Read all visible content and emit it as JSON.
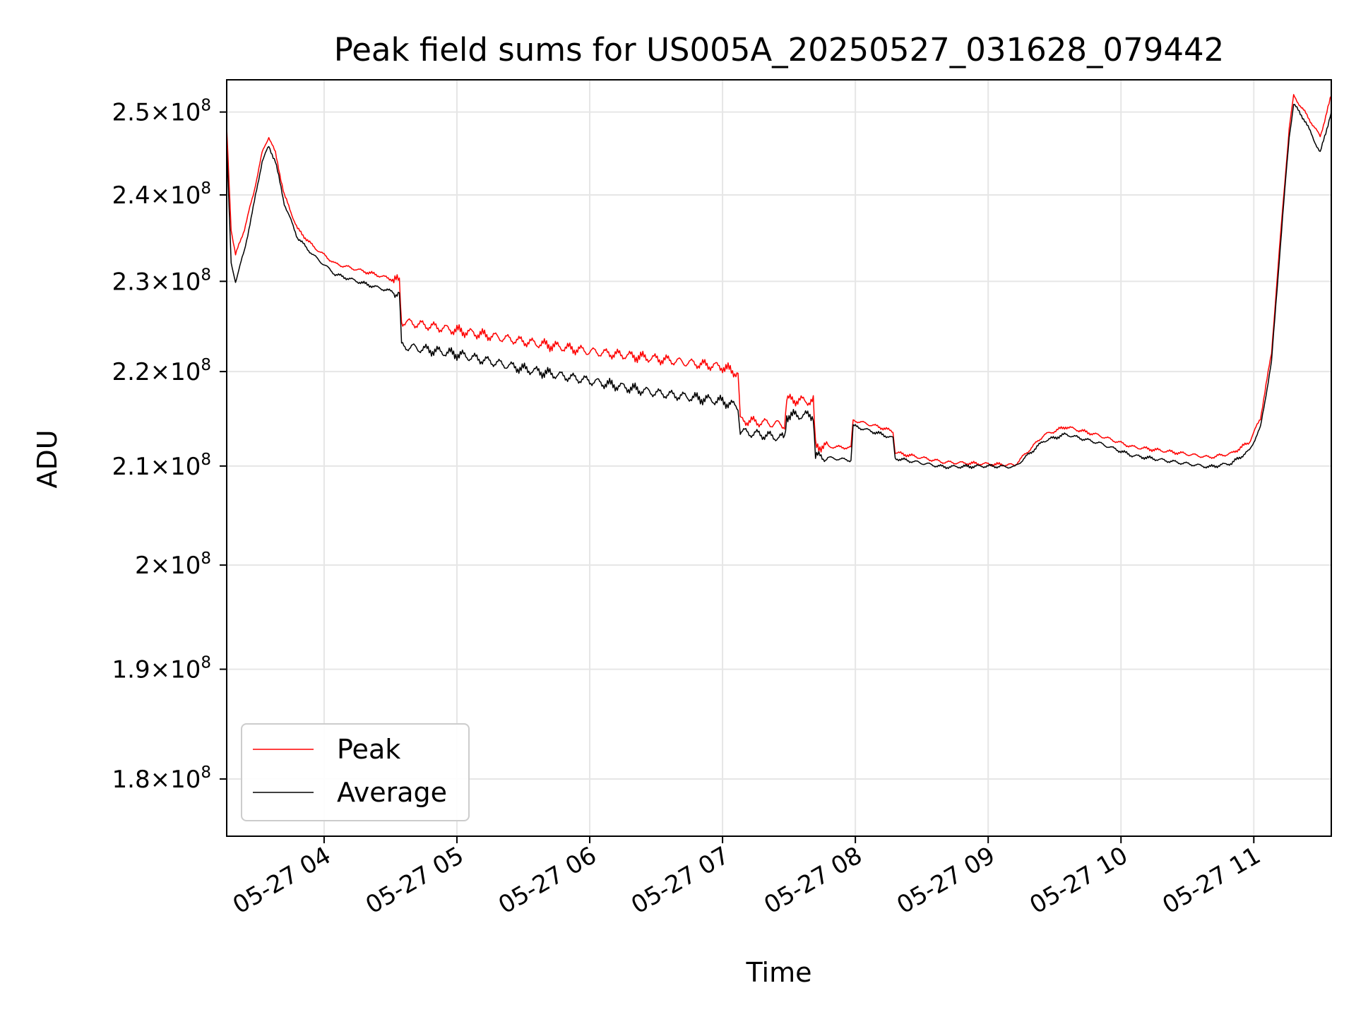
{
  "chart_data": {
    "type": "line",
    "title": "Peak field sums for US005A_20250527_031628_079442",
    "xlabel": "Time",
    "ylabel": "ADU",
    "y_scale": "log",
    "ylim": [
      175000000,
      254000000
    ],
    "xlim": [
      "2025-05-27 03:16",
      "2025-05-27 11:35"
    ],
    "grid": true,
    "legend": {
      "placement": "lower-left"
    },
    "x_ticks": [
      {
        "t": "2025-05-27 04:00",
        "label": "05-27 04"
      },
      {
        "t": "2025-05-27 05:00",
        "label": "05-27 05"
      },
      {
        "t": "2025-05-27 06:00",
        "label": "05-27 06"
      },
      {
        "t": "2025-05-27 07:00",
        "label": "05-27 07"
      },
      {
        "t": "2025-05-27 08:00",
        "label": "05-27 08"
      },
      {
        "t": "2025-05-27 09:00",
        "label": "05-27 09"
      },
      {
        "t": "2025-05-27 10:00",
        "label": "05-27 10"
      },
      {
        "t": "2025-05-27 11:00",
        "label": "05-27 11"
      }
    ],
    "y_ticks": [
      {
        "value": 180000000,
        "mantissa": "1.8",
        "exp": "8"
      },
      {
        "value": 190000000,
        "mantissa": "1.9",
        "exp": "8"
      },
      {
        "value": 200000000,
        "mantissa": "2",
        "exp": "8"
      },
      {
        "value": 210000000,
        "mantissa": "2.1",
        "exp": "8"
      },
      {
        "value": 220000000,
        "mantissa": "2.2",
        "exp": "8"
      },
      {
        "value": 230000000,
        "mantissa": "2.3",
        "exp": "8"
      },
      {
        "value": 240000000,
        "mantissa": "2.4",
        "exp": "8"
      },
      {
        "value": 250000000,
        "mantissa": "2.5",
        "exp": "8"
      }
    ],
    "series": [
      {
        "name": "Peak",
        "color": "#ff0000",
        "points": [
          [
            "2025-05-27 03:16",
            248000000
          ],
          [
            "2025-05-27 03:18",
            236000000
          ],
          [
            "2025-05-27 03:20",
            233000000
          ],
          [
            "2025-05-27 03:24",
            236000000
          ],
          [
            "2025-05-27 03:28",
            240000000
          ],
          [
            "2025-05-27 03:32",
            245000000
          ],
          [
            "2025-05-27 03:35",
            247000000
          ],
          [
            "2025-05-27 03:38",
            245000000
          ],
          [
            "2025-05-27 03:42",
            240000000
          ],
          [
            "2025-05-27 03:48",
            236000000
          ],
          [
            "2025-05-27 03:55",
            234000000
          ],
          [
            "2025-05-27 04:05",
            232000000
          ],
          [
            "2025-05-27 04:20",
            231000000
          ],
          [
            "2025-05-27 04:34",
            230000000
          ],
          [
            "2025-05-27 04:35",
            225500000
          ],
          [
            "2025-05-27 05:00",
            224500000
          ],
          [
            "2025-05-27 05:30",
            223300000
          ],
          [
            "2025-05-27 06:00",
            222200000
          ],
          [
            "2025-05-27 06:30",
            221400000
          ],
          [
            "2025-05-27 07:00",
            220500000
          ],
          [
            "2025-05-27 07:07",
            219800000
          ],
          [
            "2025-05-27 07:08",
            214800000
          ],
          [
            "2025-05-27 07:28",
            214300000
          ],
          [
            "2025-05-27 07:29",
            217000000
          ],
          [
            "2025-05-27 07:41",
            216800000
          ],
          [
            "2025-05-27 07:42",
            212100000
          ],
          [
            "2025-05-27 07:58",
            211900000
          ],
          [
            "2025-05-27 07:59",
            214800000
          ],
          [
            "2025-05-27 08:12",
            214000000
          ],
          [
            "2025-05-27 08:17",
            213600000
          ],
          [
            "2025-05-27 08:18",
            211400000
          ],
          [
            "2025-05-27 08:40",
            210400000
          ],
          [
            "2025-05-27 09:00",
            210200000
          ],
          [
            "2025-05-27 09:12",
            210100000
          ],
          [
            "2025-05-27 09:25",
            213200000
          ],
          [
            "2025-05-27 09:35",
            214100000
          ],
          [
            "2025-05-27 09:50",
            213200000
          ],
          [
            "2025-05-27 10:05",
            212000000
          ],
          [
            "2025-05-27 10:25",
            211400000
          ],
          [
            "2025-05-27 10:40",
            210900000
          ],
          [
            "2025-05-27 10:50",
            211300000
          ],
          [
            "2025-05-27 10:58",
            212500000
          ],
          [
            "2025-05-27 11:03",
            215000000
          ],
          [
            "2025-05-27 11:08",
            222000000
          ],
          [
            "2025-05-27 11:12",
            235000000
          ],
          [
            "2025-05-27 11:16",
            248000000
          ],
          [
            "2025-05-27 11:18",
            252000000
          ],
          [
            "2025-05-27 11:23",
            250000000
          ],
          [
            "2025-05-27 11:30",
            247000000
          ],
          [
            "2025-05-27 11:35",
            252000000
          ]
        ]
      },
      {
        "name": "Average",
        "color": "#000000",
        "points": [
          [
            "2025-05-27 03:16",
            246000000
          ],
          [
            "2025-05-27 03:18",
            232000000
          ],
          [
            "2025-05-27 03:20",
            230000000
          ],
          [
            "2025-05-27 03:24",
            233500000
          ],
          [
            "2025-05-27 03:28",
            238500000
          ],
          [
            "2025-05-27 03:32",
            244000000
          ],
          [
            "2025-05-27 03:35",
            245800000
          ],
          [
            "2025-05-27 03:38",
            244000000
          ],
          [
            "2025-05-27 03:42",
            239000000
          ],
          [
            "2025-05-27 03:48",
            235000000
          ],
          [
            "2025-05-27 03:55",
            233000000
          ],
          [
            "2025-05-27 04:05",
            230800000
          ],
          [
            "2025-05-27 04:20",
            229600000
          ],
          [
            "2025-05-27 04:34",
            228600000
          ],
          [
            "2025-05-27 04:35",
            222800000
          ],
          [
            "2025-05-27 05:00",
            221900000
          ],
          [
            "2025-05-27 05:30",
            220300000
          ],
          [
            "2025-05-27 06:00",
            219000000
          ],
          [
            "2025-05-27 06:30",
            217700000
          ],
          [
            "2025-05-27 07:00",
            216800000
          ],
          [
            "2025-05-27 07:07",
            216200000
          ],
          [
            "2025-05-27 07:08",
            213600000
          ],
          [
            "2025-05-27 07:28",
            212900000
          ],
          [
            "2025-05-27 07:29",
            215300000
          ],
          [
            "2025-05-27 07:41",
            215300000
          ],
          [
            "2025-05-27 07:42",
            211000000
          ],
          [
            "2025-05-27 07:58",
            210600000
          ],
          [
            "2025-05-27 07:59",
            214200000
          ],
          [
            "2025-05-27 08:12",
            213300000
          ],
          [
            "2025-05-27 08:17",
            212900000
          ],
          [
            "2025-05-27 08:18",
            210800000
          ],
          [
            "2025-05-27 08:40",
            209900000
          ],
          [
            "2025-05-27 09:00",
            210000000
          ],
          [
            "2025-05-27 09:12",
            209900000
          ],
          [
            "2025-05-27 09:25",
            212600000
          ],
          [
            "2025-05-27 09:35",
            213300000
          ],
          [
            "2025-05-27 09:50",
            212400000
          ],
          [
            "2025-05-27 10:05",
            211100000
          ],
          [
            "2025-05-27 10:25",
            210400000
          ],
          [
            "2025-05-27 10:40",
            209900000
          ],
          [
            "2025-05-27 10:50",
            210300000
          ],
          [
            "2025-05-27 10:58",
            211600000
          ],
          [
            "2025-05-27 11:03",
            214000000
          ],
          [
            "2025-05-27 11:08",
            221000000
          ],
          [
            "2025-05-27 11:12",
            234000000
          ],
          [
            "2025-05-27 11:16",
            247000000
          ],
          [
            "2025-05-27 11:18",
            251000000
          ],
          [
            "2025-05-27 11:23",
            249000000
          ],
          [
            "2025-05-27 11:30",
            245000000
          ],
          [
            "2025-05-27 11:35",
            250000000
          ]
        ]
      }
    ]
  }
}
